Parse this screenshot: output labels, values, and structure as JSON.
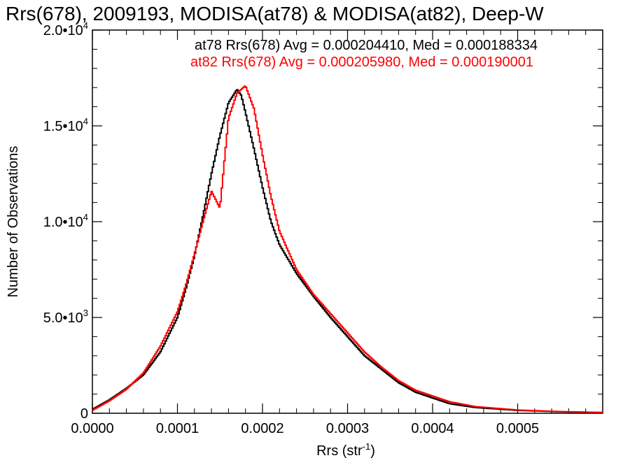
{
  "chart_data": {
    "type": "line",
    "title": "Rrs(678), 2009193, MODISA(at78) & MODISA(at82), Deep-W",
    "xlabel": "Rrs (str",
    "xlabel_sup": "-1",
    "xlabel_end": ")",
    "ylabel": "Number of Observations",
    "xlim": [
      0.0,
      0.0006
    ],
    "ylim": [
      0,
      20000
    ],
    "x_ticks": [
      {
        "value": 0.0,
        "label": "0.0000"
      },
      {
        "value": 0.0001,
        "label": "0.0001"
      },
      {
        "value": 0.0002,
        "label": "0.0002"
      },
      {
        "value": 0.0003,
        "label": "0.0003"
      },
      {
        "value": 0.0004,
        "label": "0.0004"
      },
      {
        "value": 0.0005,
        "label": "0.0005"
      }
    ],
    "y_ticks": [
      {
        "value": 0,
        "mant": "0",
        "exp": ""
      },
      {
        "value": 5000,
        "mant": "5.0•10",
        "exp": "3"
      },
      {
        "value": 10000,
        "mant": "1.0•10",
        "exp": "4"
      },
      {
        "value": 15000,
        "mant": "1.5•10",
        "exp": "4"
      },
      {
        "value": 20000,
        "mant": "2.0•10",
        "exp": "4"
      }
    ],
    "grid": false,
    "series": [
      {
        "name": "at78",
        "color": "#000000",
        "legend": "at78 Rrs(678) Avg = 0.000204410, Med = 0.000188334",
        "x": [
          0.0,
          2e-05,
          4e-05,
          6e-05,
          8e-05,
          0.0001,
          0.00011,
          0.00012,
          0.00013,
          0.00014,
          0.00015,
          0.00016,
          0.00017,
          0.000175,
          0.00018,
          0.00019,
          0.0002,
          0.00021,
          0.00022,
          0.00024,
          0.00026,
          0.00028,
          0.0003,
          0.00032,
          0.00034,
          0.00036,
          0.00038,
          0.0004,
          0.00042,
          0.00045,
          0.0005,
          0.00055,
          0.0006
        ],
        "y": [
          200,
          700,
          1300,
          2000,
          3200,
          5000,
          6500,
          8200,
          10300,
          12500,
          14500,
          16200,
          16900,
          16600,
          15700,
          13800,
          11800,
          10000,
          8800,
          7300,
          6100,
          5000,
          4000,
          3000,
          2300,
          1600,
          1100,
          800,
          500,
          300,
          150,
          80,
          40
        ]
      },
      {
        "name": "at82",
        "color": "#ff0000",
        "legend": "at82 Rrs(678) Avg = 0.000205980, Med = 0.000190001",
        "x": [
          0.0,
          2e-05,
          4e-05,
          6e-05,
          8e-05,
          0.0001,
          0.00011,
          0.00012,
          0.00013,
          0.00014,
          0.00015,
          0.00016,
          0.00017,
          0.00018,
          0.00019,
          0.0002,
          0.00021,
          0.00022,
          0.00024,
          0.00026,
          0.00028,
          0.0003,
          0.00032,
          0.00034,
          0.00036,
          0.00038,
          0.0004,
          0.00042,
          0.00045,
          0.0005,
          0.00055,
          0.0006
        ],
        "y": [
          150,
          650,
          1250,
          2100,
          3500,
          5300,
          6700,
          8300,
          10000,
          11600,
          10700,
          15400,
          16700,
          17100,
          15900,
          13500,
          11300,
          9500,
          7500,
          6200,
          5200,
          4200,
          3200,
          2400,
          1700,
          1200,
          900,
          600,
          350,
          170,
          90,
          40
        ]
      }
    ]
  }
}
